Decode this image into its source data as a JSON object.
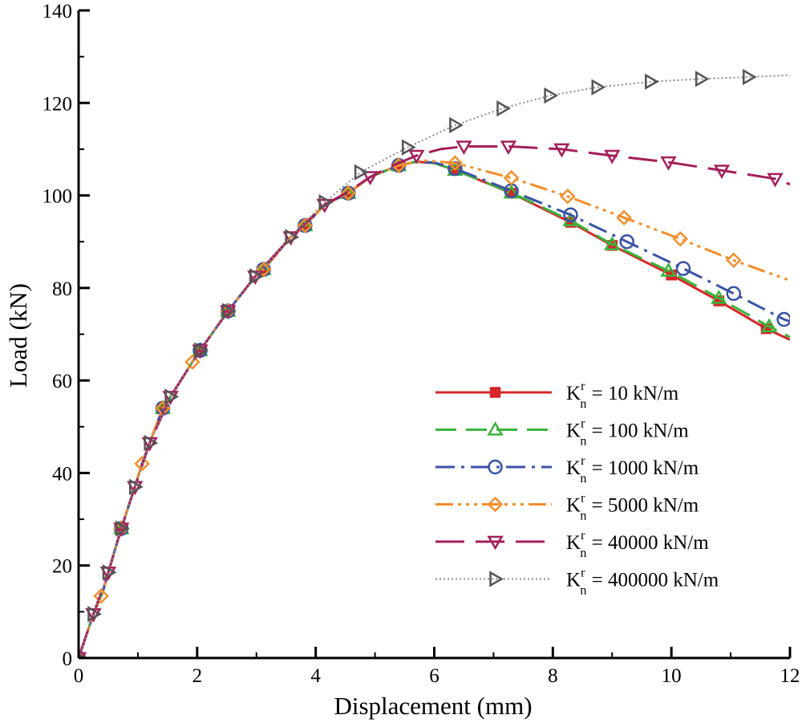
{
  "chart_data": {
    "type": "line",
    "xlabel": "Displacement (mm)",
    "ylabel": "Load (kN)",
    "xlim": [
      0,
      12
    ],
    "ylim": [
      0,
      140
    ],
    "xticks": [
      0,
      2,
      4,
      6,
      8,
      10,
      12
    ],
    "yticks": [
      0,
      20,
      40,
      60,
      80,
      100,
      120,
      140
    ],
    "grid": false,
    "legend_position": "bottom-right",
    "legend_prefix": "K",
    "legend_sup": "r",
    "legend_sub": "n",
    "series": [
      {
        "name": "10 kN/m",
        "label_value": " = 10 kN/m",
        "color": "#d62728",
        "dash": "",
        "marker": "square",
        "x": [
          0,
          0.25,
          0.4,
          0.5,
          0.72,
          0.95,
          1.07,
          1.2,
          1.42,
          1.55,
          1.92,
          2.05,
          2.52,
          2.98,
          3.12,
          3.58,
          3.82,
          4.15,
          4.55,
          4.92,
          5.4,
          5.7,
          6.0,
          6.35,
          7.3,
          8.3,
          9.0,
          10.0,
          10.8,
          11.6,
          12.0
        ],
        "y": [
          0,
          9.5,
          14,
          18.5,
          28,
          37,
          42,
          46.5,
          54,
          56.5,
          64,
          66.5,
          75,
          82.5,
          84,
          91,
          93.5,
          98,
          100.5,
          104,
          106.5,
          107.3,
          107.0,
          105.5,
          100.5,
          94.2,
          89.2,
          82.8,
          77.2,
          71.2,
          68.8
        ],
        "marker_x": [
          0,
          0.72,
          1.42,
          2.05,
          2.52,
          3.12,
          3.82,
          4.55,
          5.4,
          6.35,
          7.3,
          8.3,
          9.0,
          10.0,
          10.8,
          11.6
        ]
      },
      {
        "name": "100 kN/m",
        "label_value": " = 100 kN/m",
        "color": "#3cb43c",
        "dash": "26 12",
        "marker": "triangle-up",
        "x": [
          0,
          0.25,
          0.4,
          0.5,
          0.72,
          0.95,
          1.07,
          1.2,
          1.42,
          1.55,
          1.92,
          2.05,
          2.52,
          2.98,
          3.12,
          3.58,
          3.82,
          4.15,
          4.55,
          4.92,
          5.4,
          5.7,
          6.0,
          6.35,
          7.3,
          8.3,
          9.0,
          10.0,
          10.8,
          11.6,
          12.0
        ],
        "y": [
          0,
          9.5,
          14,
          18.5,
          28,
          37,
          42,
          46.5,
          54,
          56.5,
          64,
          66.5,
          75,
          82.5,
          84,
          91,
          93.5,
          98,
          100.5,
          104,
          106.5,
          107.3,
          107.0,
          105.5,
          100.6,
          94.6,
          89.4,
          83.4,
          77.8,
          72.0,
          69.4
        ],
        "marker_x": [
          0,
          0.72,
          1.42,
          2.05,
          2.52,
          3.12,
          3.82,
          4.55,
          5.4,
          6.35,
          7.3,
          8.3,
          9.0,
          9.95,
          10.8,
          11.65
        ]
      },
      {
        "name": "1000 kN/m",
        "label_value": " = 1000 kN/m",
        "color": "#3a53a4",
        "dash": "24 8 4 8",
        "marker": "circle",
        "x": [
          0,
          0.25,
          0.4,
          0.5,
          0.72,
          0.95,
          1.07,
          1.2,
          1.42,
          1.55,
          1.92,
          2.05,
          2.52,
          2.98,
          3.12,
          3.58,
          3.82,
          4.15,
          4.55,
          4.92,
          5.4,
          5.7,
          6.0,
          6.35,
          7.3,
          8.3,
          9.25,
          10.2,
          11.05,
          11.9,
          12.0
        ],
        "y": [
          0,
          9.5,
          14,
          18.5,
          28,
          37,
          42,
          46.5,
          54,
          56.5,
          64,
          66.5,
          75,
          82.5,
          84,
          91,
          93.5,
          98,
          100.5,
          104,
          106.5,
          107.3,
          107.1,
          105.8,
          101.0,
          95.8,
          90.0,
          84.2,
          78.8,
          73.2,
          72.8
        ],
        "marker_x": [
          0,
          0.72,
          1.42,
          2.05,
          2.52,
          3.12,
          3.82,
          4.55,
          5.4,
          6.35,
          7.3,
          8.3,
          9.25,
          10.2,
          11.05,
          11.9
        ]
      },
      {
        "name": "5000 kN/m",
        "label_value": " = 5000 kN/m",
        "color": "#f28e2b",
        "dash": "22 6 4 6 4 6 4 6",
        "marker": "diamond",
        "x": [
          0,
          0.25,
          0.4,
          0.5,
          0.72,
          0.95,
          1.07,
          1.2,
          1.42,
          1.55,
          1.92,
          2.05,
          2.52,
          2.98,
          3.12,
          3.58,
          3.82,
          4.15,
          4.55,
          4.92,
          5.4,
          5.8,
          6.35,
          7.3,
          8.25,
          9.2,
          10.15,
          11.05,
          12.0
        ],
        "y": [
          0,
          9.5,
          14,
          18.5,
          28,
          37,
          42,
          46.5,
          54,
          56.5,
          64,
          66.5,
          75,
          82.5,
          84,
          91,
          93.5,
          98,
          100.5,
          104,
          106.5,
          107.6,
          107.0,
          103.8,
          99.8,
          95.2,
          90.6,
          86.0,
          81.6
        ],
        "marker_x": [
          0,
          0.38,
          0.72,
          1.07,
          1.42,
          1.92,
          2.52,
          3.12,
          3.82,
          4.55,
          5.4,
          6.35,
          7.3,
          8.25,
          9.2,
          10.15,
          11.05
        ]
      },
      {
        "name": "40000 kN/m",
        "label_value": " = 40000 kN/m",
        "color": "#a31f5a",
        "dash": "36 14",
        "marker": "triangle-down",
        "x": [
          0,
          0.25,
          0.5,
          0.72,
          0.95,
          1.2,
          1.55,
          2.05,
          2.52,
          2.98,
          3.58,
          4.15,
          4.55,
          4.92,
          5.3,
          5.7,
          6.1,
          6.5,
          7.25,
          8.15,
          9.0,
          9.95,
          10.85,
          11.75,
          12.0
        ],
        "y": [
          0,
          9.5,
          18.5,
          28,
          37,
          46.5,
          56.5,
          66.5,
          75,
          82.5,
          91,
          98,
          100.8,
          104,
          106.5,
          108.6,
          110.0,
          110.6,
          110.6,
          110.0,
          108.6,
          107.2,
          105.4,
          103.6,
          102.4
        ],
        "marker_x": [
          0,
          0.25,
          0.5,
          0.72,
          0.95,
          1.2,
          1.55,
          2.05,
          2.52,
          2.98,
          3.58,
          4.15,
          4.92,
          5.7,
          6.5,
          7.25,
          8.15,
          9.0,
          9.95,
          10.85,
          11.75
        ]
      },
      {
        "name": "400000 kN/m",
        "label_value": " = 400000 kN/m",
        "color": "#8c8c8c",
        "dash": "2 3",
        "marker": "triangle-right",
        "marker_color": "#555555",
        "x": [
          0,
          0.25,
          0.5,
          0.72,
          0.95,
          1.2,
          1.55,
          2.05,
          2.52,
          2.98,
          3.58,
          4.15,
          4.75,
          5.55,
          6.35,
          7.15,
          7.95,
          8.75,
          9.65,
          10.5,
          11.3,
          12.0
        ],
        "y": [
          0,
          9.5,
          18.5,
          28,
          37,
          46.5,
          56.5,
          66.5,
          75,
          82.5,
          91,
          98.5,
          105.0,
          110.4,
          115.2,
          118.8,
          121.6,
          123.4,
          124.6,
          125.2,
          125.6,
          126.0
        ],
        "marker_x": [
          0,
          0.25,
          0.5,
          0.72,
          0.95,
          1.2,
          1.55,
          2.05,
          2.52,
          2.98,
          3.58,
          4.15,
          4.75,
          5.55,
          6.35,
          7.15,
          7.95,
          8.75,
          9.65,
          10.5,
          11.3
        ]
      }
    ]
  }
}
